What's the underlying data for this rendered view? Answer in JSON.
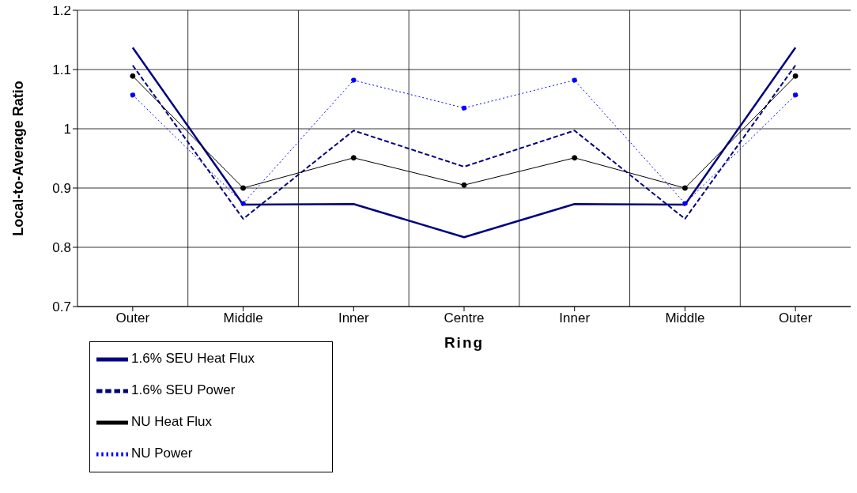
{
  "chart_data": {
    "type": "line",
    "xlabel": "Ring",
    "ylabel": "Local-to-Average Ratio",
    "categories": [
      "Outer",
      "Middle",
      "Inner",
      "Centre",
      "Inner",
      "Middle",
      "Outer"
    ],
    "series": [
      {
        "name": "1.6% SEU Heat Flux",
        "color": "#000080",
        "line_style": "solid",
        "marker": "none",
        "values": [
          1.137,
          0.872,
          0.873,
          0.817,
          0.873,
          0.872,
          1.137
        ]
      },
      {
        "name": "1.6% SEU Power",
        "color": "#000080",
        "line_style": "dashed",
        "marker": "none",
        "values": [
          1.107,
          0.848,
          0.997,
          0.936,
          0.997,
          0.848,
          1.107
        ]
      },
      {
        "name": "NU Heat Flux",
        "color": "#000000",
        "line_style": "solid",
        "marker": "circle",
        "values": [
          1.089,
          0.9,
          0.951,
          0.905,
          0.951,
          0.9,
          1.089
        ]
      },
      {
        "name": "NU Power",
        "color": "#0000ff",
        "line_style": "dotted",
        "marker": "circle",
        "values": [
          1.057,
          0.874,
          1.082,
          1.035,
          1.082,
          0.874,
          1.057
        ]
      }
    ],
    "ylim": [
      0.7,
      1.2
    ],
    "yticks": [
      0.7,
      0.8,
      0.9,
      1,
      1.1,
      1.2
    ],
    "grid": true,
    "legend": "bottom left"
  }
}
